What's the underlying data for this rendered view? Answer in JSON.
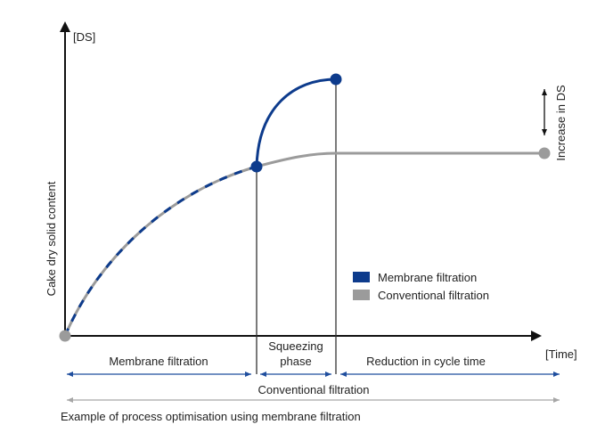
{
  "diagram": {
    "y_axis_unit": "[DS]",
    "x_axis_unit": "[Time]",
    "y_axis_title": "Cake dry solid content",
    "increase_label": "Increase in DS",
    "legend": [
      {
        "label": "Membrane filtration",
        "color": "#0d3b8c"
      },
      {
        "label": "Conventional filtration",
        "color": "#9b9b9b"
      }
    ],
    "phases": {
      "membrane": "Membrane filtration",
      "squeezing_line1": "Squeezing",
      "squeezing_line2": "phase",
      "reduction": "Reduction in cycle time",
      "conventional": "Conventional filtration"
    },
    "caption": "Example of process optimisation using membrane filtration",
    "colors": {
      "membrane": "#0d3b8c",
      "conventional": "#9b9b9b",
      "axis": "#111111",
      "arrow_blue": "#1f4e9e",
      "arrow_grey": "#a6a6a6"
    }
  }
}
